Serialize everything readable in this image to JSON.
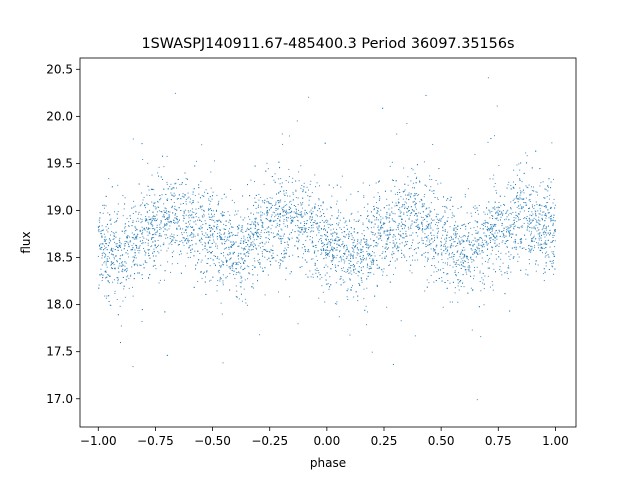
{
  "chart_data": {
    "type": "scatter",
    "title": "1SWASPJ140911.67-485400.3 Period 36097.35156s",
    "xlabel": "phase",
    "ylabel": "flux",
    "xlim": [
      -1.08,
      1.09
    ],
    "ylim": [
      16.7,
      20.62
    ],
    "xticks": [
      -1.0,
      -0.75,
      -0.5,
      -0.25,
      0.0,
      0.25,
      0.5,
      0.75,
      1.0
    ],
    "xtick_labels": [
      "−1.00",
      "−0.75",
      "−0.50",
      "−0.25",
      "0.00",
      "0.25",
      "0.50",
      "0.75",
      "1.00"
    ],
    "yticks": [
      17.0,
      17.5,
      18.0,
      18.5,
      19.0,
      19.5,
      20.0,
      20.5
    ],
    "ytick_labels": [
      "17.0",
      "17.5",
      "18.0",
      "18.5",
      "19.0",
      "19.5",
      "20.0",
      "20.5"
    ],
    "grid": false,
    "marker_color": "#1f77b4",
    "series": [
      {
        "description_of_distribution": "dense folded light curve, phase -1 to 1, flux ~17.0-20.5, two cycles",
        "x": [
          -1.0,
          -0.95,
          -0.9,
          -0.85,
          -0.8,
          -0.75,
          -0.7,
          -0.65,
          -0.6,
          -0.55,
          -0.5,
          -0.45,
          -0.4,
          -0.35,
          -0.3,
          -0.25,
          -0.2,
          -0.15,
          -0.1,
          -0.05,
          0.0,
          0.05,
          0.1,
          0.15,
          0.2,
          0.25,
          0.3,
          0.35,
          0.4,
          0.45,
          0.5,
          0.55,
          0.6,
          0.65,
          0.7,
          0.75,
          0.8,
          0.85,
          0.9,
          0.95,
          1.0
        ],
        "y": [
          18.65,
          18.55,
          18.5,
          18.6,
          18.75,
          18.85,
          18.9,
          18.95,
          18.9,
          18.8,
          18.75,
          18.6,
          18.55,
          18.6,
          18.75,
          18.85,
          18.9,
          18.9,
          18.85,
          18.75,
          18.7,
          18.6,
          18.5,
          18.55,
          18.65,
          18.75,
          18.85,
          18.9,
          18.9,
          18.8,
          18.75,
          18.65,
          18.55,
          18.6,
          18.7,
          18.8,
          18.9,
          18.9,
          18.85,
          18.8,
          18.75
        ]
      }
    ]
  }
}
